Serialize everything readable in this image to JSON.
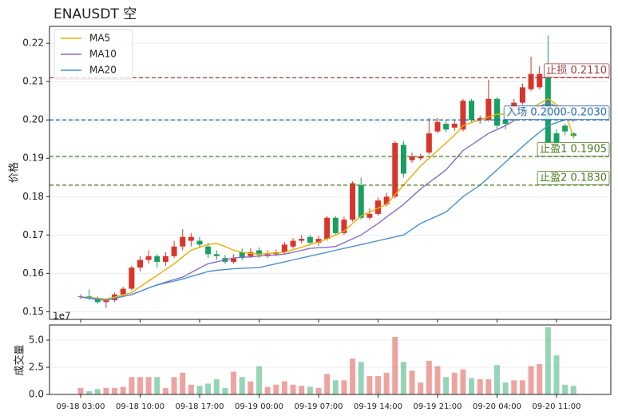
{
  "chart_data": {
    "type": "candlestick",
    "title": "ENAUSDT  空",
    "ylabel": "价格",
    "categories": [
      "09-18 03:00",
      null,
      null,
      null,
      null,
      null,
      null,
      "09-18 10:00",
      null,
      null,
      null,
      null,
      null,
      null,
      "09-18 17:00",
      null,
      null,
      null,
      null,
      null,
      null,
      "09-19 00:00",
      null,
      null,
      null,
      null,
      null,
      null,
      "09-19 07:00",
      null,
      null,
      null,
      null,
      null,
      null,
      "09-19 14:00",
      null,
      null,
      null,
      null,
      null,
      null,
      "09-19 21:00",
      null,
      null,
      null,
      null,
      null,
      null,
      "09-20 04:00",
      null,
      null,
      null,
      null,
      null,
      null,
      "09-20 11:00",
      null,
      null
    ],
    "open": [
      0.1538,
      0.154,
      0.1535,
      0.1525,
      0.153,
      0.1545,
      0.156,
      0.1615,
      0.1635,
      0.1645,
      0.163,
      0.1645,
      0.167,
      0.1685,
      0.1685,
      0.167,
      0.165,
      0.164,
      0.163,
      0.1655,
      0.1645,
      0.166,
      0.1645,
      0.165,
      0.1655,
      0.167,
      0.1685,
      0.1695,
      0.168,
      0.169,
      0.1745,
      0.1705,
      0.174,
      0.183,
      0.1745,
      0.1755,
      0.178,
      0.18,
      0.1935,
      0.1895,
      0.19,
      0.1915,
      0.197,
      0.199,
      0.198,
      0.1975,
      0.205,
      0.2,
      0.2,
      0.2055,
      0.2,
      0.203,
      0.2045,
      0.208,
      0.2085,
      0.212,
      0.1965,
      0.1985,
      0.1965
    ],
    "high": [
      0.1545,
      0.1558,
      0.154,
      0.1535,
      0.155,
      0.1565,
      0.162,
      0.1645,
      0.166,
      0.165,
      0.1655,
      0.1685,
      0.1715,
      0.1705,
      0.1695,
      0.168,
      0.166,
      0.1648,
      0.165,
      0.1665,
      0.1665,
      0.1668,
      0.166,
      0.1662,
      0.1682,
      0.1692,
      0.17,
      0.17,
      0.1698,
      0.175,
      0.175,
      0.1748,
      0.184,
      0.185,
      0.177,
      0.1798,
      0.181,
      0.1945,
      0.1945,
      0.1915,
      0.1912,
      0.2005,
      0.2005,
      0.1998,
      0.1998,
      0.2055,
      0.2055,
      0.2012,
      0.2105,
      0.206,
      0.2008,
      0.2055,
      0.2095,
      0.2165,
      0.214,
      0.222,
      0.1975,
      0.199,
      0.1968
    ],
    "low": [
      0.1533,
      0.153,
      0.152,
      0.151,
      0.1525,
      0.154,
      0.1555,
      0.1605,
      0.1625,
      0.1615,
      0.162,
      0.164,
      0.166,
      0.167,
      0.1665,
      0.164,
      0.1635,
      0.1625,
      0.1625,
      0.1635,
      0.164,
      0.164,
      0.164,
      0.1645,
      0.165,
      0.1665,
      0.1678,
      0.1675,
      0.1672,
      0.1685,
      0.17,
      0.17,
      0.1735,
      0.174,
      0.174,
      0.175,
      0.1775,
      0.1795,
      0.185,
      0.1888,
      0.1895,
      0.191,
      0.1965,
      0.1968,
      0.1972,
      0.197,
      0.1995,
      0.199,
      0.1995,
      0.1978,
      0.1975,
      0.202,
      0.204,
      0.2075,
      0.208,
      0.1935,
      0.1925,
      0.196,
      0.1952
    ],
    "close": [
      0.154,
      0.1535,
      0.1525,
      0.153,
      0.1545,
      0.156,
      0.1615,
      0.1635,
      0.1645,
      0.163,
      0.1645,
      0.167,
      0.1695,
      0.1695,
      0.1675,
      0.165,
      0.1645,
      0.163,
      0.164,
      0.164,
      0.1655,
      0.1648,
      0.165,
      0.1655,
      0.1675,
      0.1685,
      0.169,
      0.168,
      0.169,
      0.1745,
      0.1705,
      0.174,
      0.1835,
      0.1745,
      0.1755,
      0.179,
      0.18,
      0.194,
      0.186,
      0.1905,
      0.1905,
      0.1965,
      0.1995,
      0.1975,
      0.199,
      0.205,
      0.2,
      0.2005,
      0.2055,
      0.1985,
      0.199,
      0.2045,
      0.2085,
      0.212,
      0.212,
      0.194,
      0.1935,
      0.197,
      0.1958
    ],
    "up_color": "#d8352c",
    "down_color": "#17a062",
    "ylim": [
      0.148,
      0.2244
    ],
    "yticks": [
      0.15,
      0.16,
      0.17,
      0.18,
      0.19,
      {
        "value": 0.2,
        "label": "0.20"
      },
      0.21,
      0.22
    ],
    "grid": true,
    "legend": "upper left",
    "series": [
      {
        "name": "MA5",
        "color": "#e6b000",
        "values": [
          0.1538,
          0.1537,
          0.1535,
          0.1533,
          0.1538,
          0.1544,
          0.155,
          0.1565,
          0.158,
          0.1595,
          0.161,
          0.1625,
          0.1643,
          0.166,
          0.1668,
          0.1675,
          0.1678,
          0.167,
          0.166,
          0.1655,
          0.1652,
          0.165,
          0.1652,
          0.1653,
          0.1655,
          0.1662,
          0.1668,
          0.1675,
          0.1682,
          0.169,
          0.17,
          0.171,
          0.173,
          0.175,
          0.176,
          0.177,
          0.178,
          0.1805,
          0.183,
          0.1855,
          0.188,
          0.19,
          0.192,
          0.194,
          0.196,
          0.1985,
          0.1993,
          0.2,
          0.2008,
          0.2015,
          0.2015,
          0.2015,
          0.2022,
          0.203,
          0.2043,
          0.2055,
          0.204,
          0.202,
          0.1955
        ]
      },
      {
        "name": "MA10",
        "color": "#8a6cc6",
        "values": [
          0.1538,
          0.1536,
          0.1533,
          0.153,
          0.1535,
          0.154,
          0.1545,
          0.1553,
          0.1562,
          0.157,
          0.1577,
          0.1584,
          0.159,
          0.1602,
          0.1614,
          0.1625,
          0.163,
          0.1635,
          0.164,
          0.1642,
          0.1643,
          0.1645,
          0.1647,
          0.1648,
          0.165,
          0.1655,
          0.166,
          0.1665,
          0.1667,
          0.1668,
          0.167,
          0.168,
          0.169,
          0.17,
          0.1715,
          0.173,
          0.1747,
          0.1763,
          0.178,
          0.18,
          0.182,
          0.1837,
          0.1853,
          0.187,
          0.1895,
          0.192,
          0.1935,
          0.195,
          0.1965,
          0.1975,
          0.1985,
          0.1998,
          0.201,
          0.2023,
          0.2035,
          0.2045,
          0.2035,
          0.202,
          0.1995
        ]
      },
      {
        "name": "MA20",
        "color": "#4a90d0",
        "values": [
          0.1538,
          0.1535,
          0.1532,
          0.153,
          0.1535,
          0.154,
          0.1545,
          0.1553,
          0.1562,
          0.157,
          0.1575,
          0.158,
          0.1585,
          0.1592,
          0.1598,
          0.1605,
          0.1608,
          0.161,
          0.1612,
          0.1613,
          0.1614,
          0.1615,
          0.162,
          0.1625,
          0.163,
          0.1635,
          0.164,
          0.1645,
          0.165,
          0.1655,
          0.166,
          0.1665,
          0.167,
          0.1675,
          0.168,
          0.1685,
          0.169,
          0.1695,
          0.17,
          0.1715,
          0.173,
          0.174,
          0.175,
          0.176,
          0.178,
          0.18,
          0.1815,
          0.183,
          0.185,
          0.187,
          0.189,
          0.191,
          0.193,
          0.195,
          0.1968,
          0.1985,
          0.1993,
          0.2,
          0.2015
        ]
      }
    ],
    "levels": [
      {
        "label": "止损 0.2110",
        "value": 0.211,
        "color": "#a33b3b"
      },
      {
        "label": "入场 0.2000-0.2030",
        "value": 0.2,
        "color": "#2a6fa8"
      },
      {
        "label": "止盈1 0.1905",
        "value": 0.1905,
        "color": "#4a7a1e"
      },
      {
        "label": "止盈2 0.1830",
        "value": 0.183,
        "color": "#4a7a1e"
      }
    ],
    "volume": {
      "ylabel": "成交量",
      "offset_text": "1e7",
      "values": [
        0.6,
        0.3,
        0.5,
        0.6,
        0.6,
        0.7,
        1.6,
        1.6,
        1.6,
        1.6,
        0.6,
        1.6,
        2.0,
        0.9,
        0.8,
        1.0,
        1.4,
        0.6,
        2.1,
        1.6,
        1.2,
        2.6,
        0.7,
        0.9,
        1.2,
        0.9,
        0.8,
        0.7,
        0.6,
        1.9,
        1.3,
        1.3,
        3.3,
        3.0,
        1.7,
        1.7,
        2.0,
        5.3,
        3.0,
        2.2,
        1.1,
        3.1,
        2.6,
        1.6,
        2.0,
        2.3,
        1.5,
        1.4,
        1.4,
        2.7,
        1.1,
        1.3,
        1.3,
        2.6,
        2.8,
        6.2,
        3.6,
        0.9,
        0.8
      ],
      "ylim": [
        0,
        6.4
      ],
      "yticks": [
        {
          "value": 0,
          "label": "0.0"
        },
        {
          "value": 2.5,
          "label": "2.5"
        },
        {
          "value": 5,
          "label": "5.0"
        }
      ]
    }
  }
}
